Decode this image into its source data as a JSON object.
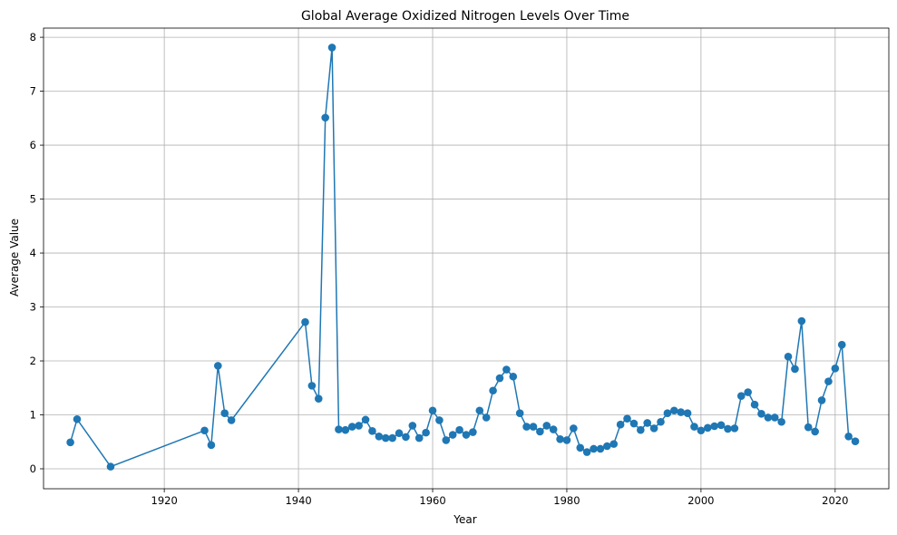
{
  "chart_data": {
    "type": "line",
    "title": "Global Average Oxidized Nitrogen Levels Over Time",
    "xlabel": "Year",
    "ylabel": "Average Value",
    "xlim": [
      1902,
      2028
    ],
    "ylim": [
      -0.37,
      8.17
    ],
    "xticks": [
      1920,
      1940,
      1960,
      1980,
      2000,
      2020
    ],
    "yticks": [
      0,
      1,
      2,
      3,
      4,
      5,
      6,
      7,
      8
    ],
    "grid": true,
    "marker": "circle",
    "color": "#1f77b4",
    "series": [
      {
        "x": [
          1906,
          1907,
          1912,
          1926,
          1927,
          1928,
          1929,
          1930,
          1941,
          1942,
          1943,
          1944,
          1945,
          1946,
          1947,
          1948,
          1949,
          1950,
          1951,
          1952,
          1953,
          1954,
          1955,
          1956,
          1957,
          1958,
          1959,
          1960,
          1961,
          1962,
          1963,
          1964,
          1965,
          1966,
          1967,
          1968,
          1969,
          1970,
          1971,
          1972,
          1973,
          1974,
          1975,
          1976,
          1977,
          1978,
          1979,
          1980,
          1981,
          1982,
          1983,
          1984,
          1985,
          1986,
          1987,
          1988,
          1989,
          1990,
          1991,
          1992,
          1993,
          1994,
          1995,
          1996,
          1997,
          1998,
          1999,
          2000,
          2001,
          2002,
          2003,
          2004,
          2005,
          2006,
          2007,
          2008,
          2009,
          2010,
          2011,
          2012,
          2013,
          2014,
          2015,
          2016,
          2017,
          2018,
          2019,
          2020,
          2021,
          2022,
          2023
        ],
        "y": [
          0.49,
          0.92,
          0.04,
          0.71,
          0.44,
          1.91,
          1.03,
          0.9,
          2.72,
          1.54,
          1.3,
          6.51,
          7.81,
          0.73,
          0.72,
          0.78,
          0.8,
          0.91,
          0.7,
          0.6,
          0.57,
          0.57,
          0.66,
          0.59,
          0.8,
          0.57,
          0.67,
          1.08,
          0.9,
          0.53,
          0.63,
          0.72,
          0.63,
          0.68,
          1.08,
          0.95,
          1.45,
          1.68,
          1.84,
          1.71,
          1.03,
          0.78,
          0.78,
          0.69,
          0.8,
          0.73,
          0.55,
          0.53,
          0.75,
          0.39,
          0.31,
          0.37,
          0.37,
          0.42,
          0.46,
          0.82,
          0.93,
          0.84,
          0.72,
          0.85,
          0.75,
          0.87,
          1.03,
          1.08,
          1.05,
          1.03,
          0.78,
          0.71,
          0.76,
          0.79,
          0.81,
          0.74,
          0.75,
          1.35,
          1.42,
          1.19,
          1.02,
          0.95,
          0.95,
          0.87,
          2.08,
          1.85,
          2.74,
          0.77,
          0.69,
          1.27,
          1.62,
          1.86,
          2.3,
          0.6,
          0.51
        ]
      }
    ]
  }
}
